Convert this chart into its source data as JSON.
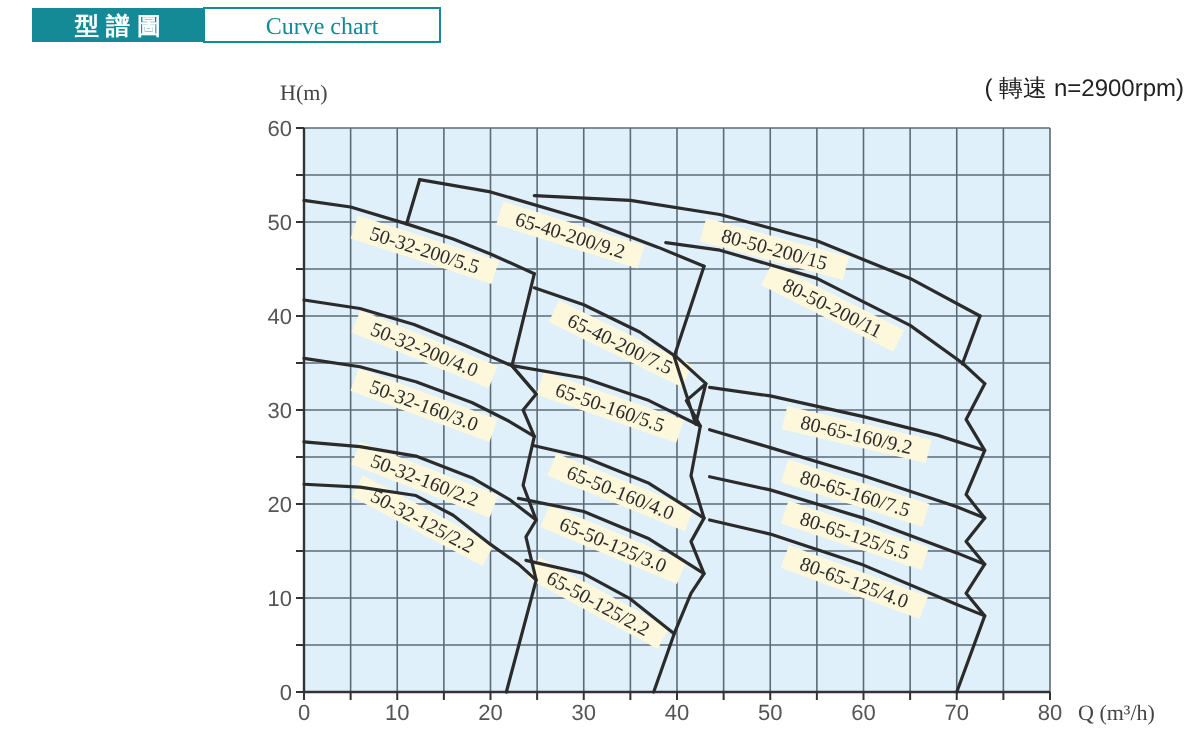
{
  "chart_data": {
    "type": "line",
    "title": "型 譜 圖",
    "subtitle": "Curve chart",
    "xlabel": "Q (m³/h)",
    "ylabel": "H(m)",
    "xlim": [
      0,
      80
    ],
    "ylim": [
      0,
      60
    ],
    "xticks": [
      0,
      {
        "value": 5,
        "label": null
      },
      10,
      {
        "value": 15,
        "label": null
      },
      20,
      {
        "value": 25,
        "label": null
      },
      30,
      {
        "value": 35,
        "label": null
      },
      40,
      {
        "value": 45,
        "label": null
      },
      50,
      {
        "value": 55,
        "label": null
      },
      60,
      {
        "value": 65,
        "label": null
      },
      70,
      {
        "value": 75,
        "label": null
      },
      80
    ],
    "yticks": [
      0,
      {
        "value": 5,
        "label": null
      },
      10,
      {
        "value": 15,
        "label": null
      },
      20,
      {
        "value": 25,
        "label": null
      },
      30,
      {
        "value": 35,
        "label": null
      },
      40,
      {
        "value": 45,
        "label": null
      },
      50,
      {
        "value": 55,
        "label": null
      },
      60
    ],
    "grid": true,
    "marker": "none",
    "line_style": "solid",
    "legend": false,
    "series": [
      {
        "name": "50-32-200/5.5",
        "color": "#2b2b2b",
        "x": [
          0,
          5,
          11,
          16,
          20,
          24.7
        ],
        "values": [
          52.3,
          51.6,
          49.8,
          48.2,
          46.6,
          44.5
        ]
      },
      {
        "name": "50-32-200/4.0",
        "color": "#2b2b2b",
        "x": [
          0,
          6,
          11.8,
          17,
          22.3,
          24.9
        ],
        "values": [
          41.7,
          40.8,
          39.1,
          37,
          34.7,
          31.7
        ]
      },
      {
        "name": "50-32-160/3.0",
        "color": "#2b2b2b",
        "x": [
          0,
          6,
          12,
          18,
          22,
          24.7
        ],
        "values": [
          35.5,
          34.6,
          33,
          30.8,
          28.8,
          27.2
        ]
      },
      {
        "name": "50-32-160/2.2",
        "color": "#2b2b2b",
        "x": [
          0,
          6,
          12,
          18,
          22,
          24.9
        ],
        "values": [
          26.6,
          26.1,
          25.1,
          22.8,
          20.5,
          18.3
        ]
      },
      {
        "name": "50-32-125/2.2",
        "color": "#2b2b2b",
        "x": [
          0,
          6,
          12,
          16,
          20,
          23,
          24.9
        ],
        "values": [
          22.1,
          21.8,
          20.9,
          18.8,
          15.7,
          13.6,
          11.9
        ]
      },
      {
        "color": "#2b2b2b",
        "x": [
          21.7,
          24.9,
          23.8,
          24.9,
          23.5,
          24.7,
          23.5,
          24.9,
          22.3,
          24.7
        ],
        "values": [
          0,
          11.9,
          16.5,
          18.3,
          22,
          27.2,
          30,
          31.7,
          34.7,
          44.5
        ]
      },
      {
        "color": "#2b2b2b",
        "x": [
          11,
          12.4
        ],
        "values": [
          49.8,
          54.5
        ]
      },
      {
        "name": "65-40-200/9.2",
        "color": "#2b2b2b",
        "x": [
          12.4,
          20,
          30,
          38,
          42.9
        ],
        "values": [
          54.5,
          53.2,
          50.3,
          47.3,
          45.3
        ]
      },
      {
        "name": "65-40-200/7.5",
        "color": "#2b2b2b",
        "x": [
          24.7,
          30,
          36,
          40,
          43.1
        ],
        "values": [
          43,
          41.2,
          38.3,
          35.6,
          32.8
        ]
      },
      {
        "name": "65-50-160/5.5",
        "color": "#2b2b2b",
        "x": [
          22.5,
          30,
          37,
          42.5
        ],
        "values": [
          34.7,
          33.4,
          31,
          28.3
        ]
      },
      {
        "name": "65-50-160/4.0",
        "color": "#2b2b2b",
        "x": [
          24.7,
          30,
          37,
          42.9
        ],
        "values": [
          26.2,
          25,
          22.2,
          18.5
        ]
      },
      {
        "name": "65-50-125/3.0",
        "color": "#2b2b2b",
        "x": [
          23,
          30,
          37,
          42.9
        ],
        "values": [
          20.6,
          19.2,
          16.3,
          12.6
        ]
      },
      {
        "name": "65-50-125/2.2",
        "color": "#2b2b2b",
        "x": [
          23.8,
          30,
          35,
          39.7
        ],
        "values": [
          14,
          12.6,
          9.9,
          6.2
        ]
      },
      {
        "color": "#2b2b2b",
        "x": [
          37.5,
          39.7,
          41.5,
          42.9,
          41.5,
          42.9,
          41.5,
          42.5,
          41,
          43.1,
          42,
          39.7,
          42.9
        ],
        "values": [
          0,
          6.2,
          10.5,
          12.6,
          16,
          18.5,
          23,
          28.3,
          31,
          32.8,
          28.5,
          35.7,
          45.3
        ]
      },
      {
        "name": "80-50-200/15",
        "color": "#2b2b2b",
        "x": [
          24.7,
          35,
          44.6,
          55,
          65,
          72.5
        ],
        "values": [
          52.8,
          52.3,
          50.8,
          48,
          44,
          40
        ]
      },
      {
        "name": "80-50-200/11",
        "color": "#2b2b2b",
        "x": [
          38.8,
          44.6,
          55,
          65,
          70.6,
          73
        ],
        "values": [
          47.8,
          47,
          44,
          39,
          35,
          32.8
        ]
      },
      {
        "color": "#2b2b2b",
        "x": [
          72.5,
          70.6
        ],
        "values": [
          40,
          34.9
        ]
      },
      {
        "name": "80-65-160/9.2",
        "color": "#2b2b2b",
        "x": [
          43.5,
          50,
          60,
          68,
          73
        ],
        "values": [
          32.4,
          31.5,
          29.3,
          27.3,
          25.7
        ]
      },
      {
        "name": "80-65-160/7.5",
        "color": "#2b2b2b",
        "x": [
          43.5,
          50,
          60,
          70,
          73
        ],
        "values": [
          27.9,
          26,
          23,
          19.7,
          18.5
        ]
      },
      {
        "name": "80-65-125/5.5",
        "color": "#2b2b2b",
        "x": [
          43.5,
          50,
          60,
          70,
          73
        ],
        "values": [
          22.9,
          21.5,
          18.5,
          14.8,
          13.6
        ]
      },
      {
        "name": "80-65-125/4.0",
        "color": "#2b2b2b",
        "x": [
          43.5,
          50,
          60,
          70,
          73
        ],
        "values": [
          18.3,
          16.8,
          13.5,
          9.3,
          8.1
        ]
      },
      {
        "color": "#2b2b2b",
        "x": [
          70,
          73,
          71,
          73,
          71,
          73,
          71,
          73,
          71,
          73
        ],
        "values": [
          0,
          8.1,
          10.5,
          13.6,
          16,
          18.5,
          21,
          25.7,
          29,
          32.8
        ]
      }
    ],
    "annotations": [
      "( 轉速 n=2900rpm)"
    ]
  }
}
